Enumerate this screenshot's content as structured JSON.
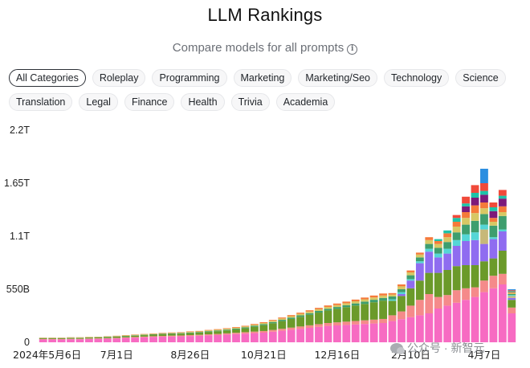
{
  "header": {
    "title": "LLM Rankings",
    "subtitle": "Compare models for all prompts"
  },
  "categories_row1": [
    "All Categories",
    "Roleplay",
    "Programming",
    "Marketing",
    "Marketing/Seo",
    "Technology",
    "Science"
  ],
  "categories_row2": [
    "Translation",
    "Legal",
    "Finance",
    "Health",
    "Trivia",
    "Academia"
  ],
  "active_category": "All Categories",
  "watermark": "公众号 · 新智元",
  "colors": {
    "pink": "#f76bc2",
    "salmon": "#f58a8a",
    "olive": "#6b9a2a",
    "purple": "#8f6cf0",
    "tan": "#c7b878",
    "cyan": "#55d6d6",
    "orange": "#f57a3a",
    "green": "#3e9e6e",
    "darkpurple": "#7d1a7a",
    "teal": "#1dc3a8",
    "blue": "#2b8ee0",
    "red": "#f04a3a",
    "khaki": "#d7c864"
  },
  "chart_data": {
    "type": "bar",
    "stacked": true,
    "yaxis_ticks": [
      "0",
      "550B",
      "1.1T",
      "1.65T",
      "2.2T"
    ],
    "ylim": [
      0,
      2200
    ],
    "y_unit": "billion tokens",
    "x_tick_labels": [
      "2024年5月6日",
      "7月1日",
      "8月26日",
      "10月21日",
      "12月16日",
      "2月10日",
      "4月7日"
    ],
    "x_tick_positions": [
      0,
      8,
      16,
      24,
      32,
      40,
      48
    ],
    "num_bars": 52,
    "grid": false,
    "series": [
      {
        "color_key": "pink",
        "values": [
          30,
          30,
          30,
          32,
          32,
          34,
          36,
          38,
          40,
          45,
          48,
          52,
          55,
          58,
          60,
          62,
          65,
          68,
          72,
          75,
          80,
          85,
          90,
          95,
          100,
          110,
          120,
          130,
          140,
          150,
          160,
          170,
          175,
          180,
          185,
          190,
          195,
          200,
          220,
          240,
          260,
          280,
          300,
          350,
          380,
          410,
          440,
          470,
          520,
          560,
          600,
          300
        ]
      },
      {
        "color_key": "salmon",
        "values": [
          4,
          4,
          4,
          4,
          4,
          5,
          5,
          5,
          6,
          6,
          7,
          7,
          8,
          8,
          9,
          9,
          10,
          10,
          11,
          12,
          13,
          14,
          15,
          16,
          17,
          18,
          20,
          22,
          24,
          26,
          28,
          30,
          32,
          34,
          36,
          38,
          40,
          42,
          60,
          80,
          120,
          160,
          200,
          120,
          110,
          130,
          120,
          100,
          120,
          130,
          110,
          60
        ]
      },
      {
        "color_key": "olive",
        "values": [
          8,
          8,
          8,
          9,
          9,
          10,
          10,
          11,
          12,
          13,
          14,
          15,
          16,
          17,
          18,
          19,
          20,
          22,
          25,
          28,
          30,
          35,
          40,
          50,
          60,
          70,
          80,
          90,
          100,
          110,
          120,
          130,
          140,
          150,
          160,
          170,
          180,
          190,
          150,
          160,
          180,
          200,
          220,
          250,
          260,
          250,
          240,
          230,
          200,
          180,
          240,
          80
        ]
      },
      {
        "color_key": "purple",
        "values": [
          0,
          0,
          0,
          0,
          0,
          0,
          0,
          0,
          0,
          0,
          0,
          0,
          0,
          0,
          0,
          0,
          0,
          0,
          0,
          0,
          0,
          0,
          0,
          0,
          0,
          0,
          0,
          0,
          0,
          0,
          0,
          0,
          0,
          0,
          0,
          0,
          0,
          0,
          0,
          20,
          80,
          180,
          220,
          160,
          170,
          210,
          250,
          260,
          180,
          200,
          200,
          20
        ]
      },
      {
        "color_key": "tan",
        "values": [
          0,
          0,
          0,
          0,
          0,
          0,
          0,
          0,
          0,
          0,
          0,
          0,
          0,
          0,
          0,
          0,
          0,
          0,
          0,
          0,
          0,
          0,
          0,
          0,
          0,
          0,
          0,
          0,
          0,
          0,
          0,
          0,
          0,
          0,
          0,
          0,
          0,
          0,
          0,
          0,
          0,
          0,
          0,
          0,
          0,
          0,
          0,
          0,
          150,
          0,
          0,
          20
        ]
      },
      {
        "color_key": "cyan",
        "values": [
          0,
          0,
          0,
          0,
          0,
          0,
          0,
          0,
          0,
          0,
          0,
          0,
          0,
          0,
          0,
          0,
          0,
          0,
          0,
          0,
          0,
          0,
          0,
          0,
          0,
          0,
          0,
          0,
          0,
          0,
          0,
          0,
          0,
          0,
          0,
          0,
          0,
          0,
          15,
          20,
          15,
          20,
          30,
          40,
          50,
          60,
          70,
          80,
          50,
          20,
          20,
          10
        ]
      },
      {
        "color_key": "green",
        "values": [
          2,
          2,
          2,
          2,
          2,
          2,
          2,
          3,
          3,
          3,
          4,
          4,
          4,
          5,
          5,
          5,
          6,
          6,
          7,
          7,
          8,
          8,
          9,
          10,
          11,
          12,
          13,
          14,
          15,
          16,
          17,
          18,
          19,
          20,
          22,
          24,
          26,
          28,
          30,
          30,
          40,
          40,
          50,
          60,
          70,
          80,
          100,
          120,
          110,
          120,
          140,
          10
        ]
      },
      {
        "color_key": "khaki",
        "values": [
          3,
          3,
          3,
          3,
          3,
          3,
          3,
          4,
          4,
          4,
          5,
          5,
          5,
          6,
          6,
          6,
          7,
          7,
          8,
          8,
          9,
          9,
          10,
          11,
          12,
          13,
          14,
          15,
          16,
          17,
          18,
          19,
          20,
          21,
          22,
          23,
          24,
          25,
          20,
          30,
          30,
          30,
          40,
          40,
          50,
          60,
          70,
          80,
          60,
          40,
          40,
          10
        ]
      },
      {
        "color_key": "orange",
        "values": [
          2,
          2,
          2,
          2,
          2,
          2,
          2,
          2,
          3,
          3,
          3,
          3,
          3,
          4,
          4,
          4,
          5,
          5,
          5,
          6,
          6,
          7,
          7,
          8,
          8,
          9,
          10,
          11,
          12,
          13,
          14,
          15,
          16,
          17,
          18,
          19,
          20,
          21,
          15,
          20,
          20,
          20,
          30,
          30,
          40,
          50,
          60,
          80,
          60,
          40,
          60,
          10
        ]
      },
      {
        "color_key": "darkpurple",
        "values": [
          0,
          0,
          0,
          0,
          0,
          0,
          0,
          0,
          0,
          0,
          0,
          0,
          0,
          0,
          0,
          0,
          0,
          0,
          0,
          0,
          0,
          0,
          0,
          0,
          0,
          0,
          0,
          0,
          0,
          0,
          0,
          0,
          0,
          0,
          0,
          0,
          0,
          0,
          0,
          0,
          0,
          0,
          0,
          0,
          0,
          0,
          60,
          80,
          80,
          70,
          80,
          0
        ]
      },
      {
        "color_key": "teal",
        "values": [
          0,
          0,
          0,
          0,
          0,
          0,
          0,
          0,
          0,
          0,
          0,
          0,
          0,
          0,
          0,
          0,
          0,
          0,
          0,
          0,
          0,
          0,
          0,
          0,
          0,
          0,
          0,
          0,
          0,
          0,
          0,
          0,
          0,
          0,
          0,
          0,
          0,
          0,
          0,
          0,
          0,
          0,
          0,
          20,
          30,
          40,
          30,
          50,
          40,
          40,
          30,
          10
        ]
      },
      {
        "color_key": "red",
        "values": [
          0,
          0,
          0,
          0,
          0,
          0,
          0,
          0,
          0,
          0,
          0,
          0,
          0,
          0,
          0,
          0,
          0,
          0,
          0,
          0,
          0,
          0,
          0,
          0,
          0,
          0,
          0,
          0,
          0,
          0,
          0,
          0,
          0,
          0,
          0,
          0,
          0,
          0,
          0,
          0,
          0,
          0,
          0,
          0,
          0,
          30,
          70,
          80,
          80,
          50,
          60,
          10
        ]
      },
      {
        "color_key": "blue",
        "values": [
          0,
          0,
          0,
          0,
          0,
          0,
          0,
          0,
          0,
          0,
          0,
          0,
          0,
          0,
          0,
          0,
          0,
          0,
          0,
          0,
          0,
          0,
          0,
          0,
          0,
          0,
          0,
          0,
          0,
          0,
          0,
          0,
          0,
          0,
          0,
          0,
          0,
          0,
          0,
          0,
          0,
          0,
          0,
          0,
          0,
          0,
          0,
          0,
          150,
          0,
          0,
          10
        ]
      }
    ]
  }
}
